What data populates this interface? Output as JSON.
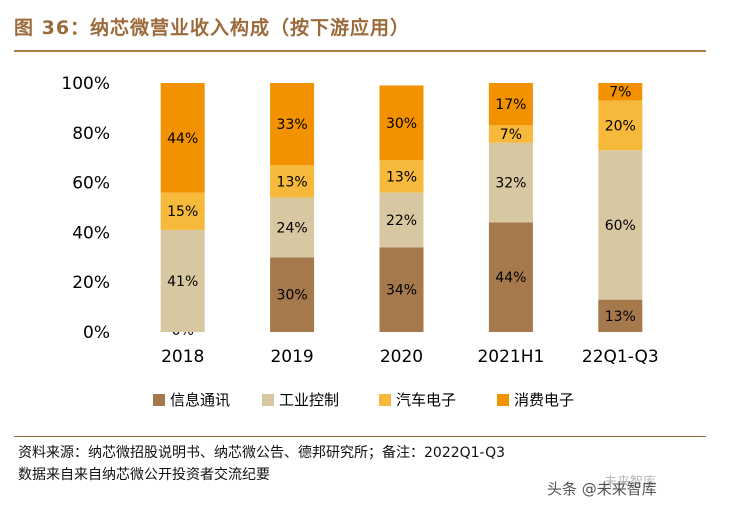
{
  "header": {
    "title": "图 36：纳芯微营业收入构成（按下游应用）"
  },
  "chart_data": {
    "type": "bar",
    "stacked": true,
    "categories": [
      "2018",
      "2019",
      "2020",
      "2021H1",
      "22Q1-Q3"
    ],
    "y_ticks": [
      "0%",
      "20%",
      "40%",
      "60%",
      "80%",
      "100%"
    ],
    "ylim": [
      0,
      100
    ],
    "legend_position": "bottom",
    "series": [
      {
        "name": "信息通讯",
        "color": "#a6794c",
        "values": [
          0,
          30,
          34,
          44,
          13
        ],
        "labels": [
          "0%",
          "30%",
          "34%",
          "44%",
          "13%"
        ]
      },
      {
        "name": "工业控制",
        "color": "#d8c8a2",
        "values": [
          41,
          24,
          22,
          32,
          60
        ],
        "labels": [
          "41%",
          "24%",
          "22%",
          "32%",
          "60%"
        ]
      },
      {
        "name": "汽车电子",
        "color": "#f6b93b",
        "values": [
          15,
          13,
          13,
          7,
          20
        ],
        "labels": [
          "15%",
          "13%",
          "13%",
          "7%",
          "20%"
        ]
      },
      {
        "name": "消费电子",
        "color": "#f39200",
        "values": [
          44,
          33,
          30,
          17,
          7
        ],
        "labels": [
          "44%",
          "33%",
          "30%",
          "17%",
          "7%"
        ]
      }
    ]
  },
  "footer": {
    "source_line1": "资料来源：纳芯微招股说明书、纳芯微公告、德邦研究所；备注：2022Q1-Q3",
    "source_line2": "数据来自来自纳芯微公开投资者交流纪要"
  },
  "watermark": {
    "text": "头条 @未来智库",
    "faint": "未来智库"
  }
}
